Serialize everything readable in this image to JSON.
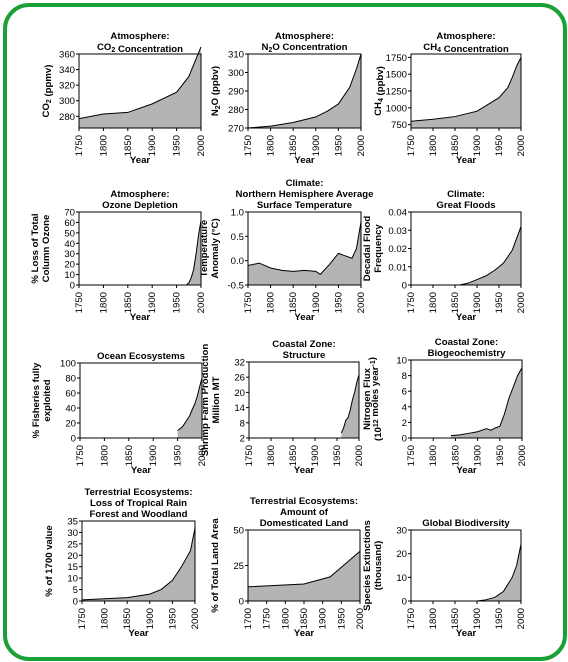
{
  "colors": {
    "frame": "#1aa035",
    "fill": "#b4b4b4",
    "line": "#000000"
  },
  "chart_data": [
    {
      "type": "area",
      "title_lines": [
        "Atmosphere:",
        "CO2 Concentration"
      ],
      "ylabel": "CO2 (ppmv)",
      "xlabel": "Year",
      "xlim": [
        1750,
        2000
      ],
      "ylim": [
        265,
        360
      ],
      "yticks": [
        280,
        300,
        320,
        340,
        360
      ],
      "xticks": [
        1750,
        1800,
        1850,
        1900,
        1950,
        2000
      ],
      "x": [
        1750,
        1800,
        1850,
        1900,
        1950,
        1975,
        1990,
        2000
      ],
      "y": [
        277,
        283,
        285,
        296,
        311,
        331,
        354,
        369
      ]
    },
    {
      "type": "area",
      "title_lines": [
        "Atmosphere:",
        "N2O Concentration"
      ],
      "ylabel": "N2O (ppbv)",
      "xlabel": "Year",
      "xlim": [
        1750,
        2000
      ],
      "ylim": [
        270,
        310
      ],
      "yticks": [
        270,
        280,
        290,
        300,
        310
      ],
      "xticks": [
        1750,
        1800,
        1850,
        1900,
        1950,
        2000
      ],
      "x": [
        1750,
        1800,
        1850,
        1900,
        1925,
        1950,
        1975,
        1990,
        2000
      ],
      "y": [
        270,
        271,
        273,
        276,
        279,
        283,
        292,
        302,
        310
      ]
    },
    {
      "type": "area",
      "title_lines": [
        "Atmosphere:",
        "CH4 Concentration"
      ],
      "ylabel": "CH4 (ppbv)",
      "xlabel": "Year",
      "xlim": [
        1750,
        2000
      ],
      "ylim": [
        700,
        1800
      ],
      "yticks": [
        750,
        1000,
        1250,
        1500,
        1750
      ],
      "xticks": [
        1750,
        1800,
        1850,
        1900,
        1950,
        2000
      ],
      "x": [
        1750,
        1800,
        1850,
        1900,
        1925,
        1950,
        1970,
        1980,
        1990,
        2000
      ],
      "y": [
        800,
        830,
        870,
        950,
        1050,
        1150,
        1300,
        1450,
        1620,
        1750
      ]
    },
    {
      "type": "area",
      "title_lines": [
        "Atmosphere:",
        "Ozone Depletion"
      ],
      "ylabel_lines": [
        "% Loss of Total",
        "Column Ozone"
      ],
      "xlabel": "Year",
      "xlim": [
        1750,
        2000
      ],
      "ylim": [
        0,
        70
      ],
      "yticks": [
        0,
        10,
        20,
        30,
        40,
        50,
        60,
        70
      ],
      "xticks": [
        1750,
        1800,
        1850,
        1900,
        1950,
        2000
      ],
      "x": [
        1750,
        1970,
        1975,
        1980,
        1985,
        1990,
        1995,
        2000
      ],
      "y": [
        0,
        0,
        2,
        7,
        15,
        30,
        48,
        62
      ]
    },
    {
      "type": "area",
      "title_lines": [
        "Climate:",
        "Northern Hemisphere Average",
        "Surface Temperature"
      ],
      "ylabel_lines": [
        "Temperature",
        "Anomaly (°C)"
      ],
      "xlabel": "Year",
      "xlim": [
        1750,
        2000
      ],
      "ylim": [
        -0.5,
        1.0
      ],
      "yticks": [
        -0.5,
        0.0,
        0.5,
        1.0
      ],
      "ytick_labels": [
        "-0.5",
        "0.0",
        "0.5",
        "1.0"
      ],
      "xticks": [
        1750,
        1800,
        1850,
        1900,
        1950,
        2000
      ],
      "x": [
        1750,
        1775,
        1800,
        1825,
        1850,
        1875,
        1900,
        1910,
        1930,
        1950,
        1965,
        1980,
        1990,
        2000
      ],
      "y": [
        -0.1,
        -0.05,
        -0.15,
        -0.2,
        -0.22,
        -0.2,
        -0.22,
        -0.28,
        -0.08,
        0.15,
        0.1,
        0.05,
        0.25,
        0.8
      ]
    },
    {
      "type": "area",
      "title_lines": [
        "Climate:",
        "Great Floods"
      ],
      "ylabel_lines": [
        "Decadal Flood",
        "Frequency"
      ],
      "xlabel": "Year",
      "xlim": [
        1750,
        2000
      ],
      "ylim": [
        0,
        0.04
      ],
      "yticks": [
        0,
        0.01,
        0.02,
        0.03,
        0.04
      ],
      "ytick_labels": [
        "0",
        "0.01",
        "0.02",
        "0.03",
        "0.04"
      ],
      "xticks": [
        1750,
        1800,
        1850,
        1900,
        1950,
        2000
      ],
      "x": [
        1860,
        1880,
        1900,
        1920,
        1940,
        1960,
        1980,
        2000
      ],
      "y": [
        0,
        0.001,
        0.003,
        0.005,
        0.008,
        0.012,
        0.019,
        0.032
      ]
    },
    {
      "type": "area",
      "title_lines": [
        "Ocean Ecosystems"
      ],
      "ylabel_lines": [
        "% Fisheries fully",
        "exploited"
      ],
      "xlabel": "Year",
      "xlim": [
        1750,
        2000
      ],
      "ylim": [
        0,
        100
      ],
      "yticks": [
        0,
        20,
        40,
        60,
        80,
        100
      ],
      "xticks": [
        1750,
        1800,
        1850,
        1900,
        1950,
        2000
      ],
      "x": [
        1950,
        1960,
        1970,
        1975,
        1980,
        1985,
        1990,
        1995,
        2000
      ],
      "y": [
        10,
        15,
        25,
        30,
        38,
        45,
        55,
        68,
        80
      ]
    },
    {
      "type": "area",
      "title_lines": [
        "Coastal Zone:",
        "Structure"
      ],
      "ylabel_lines": [
        "Shrimp Farm Production",
        "Million MT"
      ],
      "xlabel": "Year",
      "xlim": [
        1750,
        2000
      ],
      "ylim": [
        2,
        32
      ],
      "yticks": [
        2,
        8,
        14,
        20,
        26,
        32
      ],
      "xticks": [
        1750,
        1800,
        1850,
        1900,
        1950,
        2000
      ],
      "x": [
        1960,
        1965,
        1970,
        1975,
        1980,
        1985,
        1990,
        1995,
        2000
      ],
      "y": [
        4,
        6,
        9,
        10,
        13,
        17,
        20,
        24,
        27
      ]
    },
    {
      "type": "area",
      "title_lines": [
        "Coastal Zone:",
        "Biogeochemistry"
      ],
      "ylabel_lines": [
        "Nitrogen Flux",
        "(10^12 moles year^-1)"
      ],
      "xlabel": "Year",
      "xlim": [
        1750,
        2000
      ],
      "ylim": [
        0,
        10
      ],
      "yticks": [
        0,
        2,
        4,
        6,
        8,
        10
      ],
      "xticks": [
        1750,
        1800,
        1850,
        1900,
        1950,
        2000
      ],
      "x": [
        1840,
        1860,
        1880,
        1900,
        1910,
        1920,
        1930,
        1940,
        1950,
        1960,
        1970,
        1980,
        1990,
        2000
      ],
      "y": [
        0.3,
        0.4,
        0.6,
        0.8,
        1.0,
        1.2,
        1.0,
        1.3,
        1.5,
        3,
        5,
        6.5,
        8,
        9
      ]
    },
    {
      "type": "area",
      "title_lines": [
        "Terrestrial Ecosystems:",
        "Loss of Tropical Rain",
        "Forest and Woodland"
      ],
      "ylabel": "% of 1700 value",
      "xlabel": "Year",
      "xlim": [
        1750,
        2000
      ],
      "ylim": [
        0,
        35
      ],
      "yticks": [
        0,
        5,
        10,
        15,
        20,
        25,
        30,
        35
      ],
      "xticks": [
        1750,
        1800,
        1850,
        1900,
        1950,
        2000
      ],
      "x": [
        1750,
        1800,
        1850,
        1900,
        1925,
        1950,
        1970,
        1990,
        2000
      ],
      "y": [
        0.5,
        1,
        1.5,
        3,
        5,
        9,
        15,
        22,
        32
      ]
    },
    {
      "type": "area",
      "title_lines": [
        "Terrestrial Ecosystems:",
        "Amount of",
        "Domesticated Land"
      ],
      "ylabel": "% of Total Land Area",
      "xlabel": "Year",
      "xlim": [
        1700,
        2000
      ],
      "ylim": [
        0,
        50
      ],
      "yticks": [
        0,
        25,
        50
      ],
      "xticks": [
        1700,
        1750,
        1800,
        1850,
        1900,
        1950,
        2000
      ],
      "x": [
        1700,
        1850,
        1920,
        2000
      ],
      "y": [
        10,
        12,
        17,
        35
      ]
    },
    {
      "type": "area",
      "title_lines": [
        "Global Biodiversity"
      ],
      "ylabel_lines": [
        "Species Extinctions",
        "(thousand)"
      ],
      "xlabel": "Year",
      "xlim": [
        1750,
        2000
      ],
      "ylim": [
        0,
        30
      ],
      "yticks": [
        0,
        10,
        20,
        30
      ],
      "xticks": [
        1750,
        1800,
        1850,
        1900,
        1950,
        2000
      ],
      "x": [
        1900,
        1920,
        1940,
        1960,
        1980,
        1990,
        2000
      ],
      "y": [
        0,
        0.5,
        1.5,
        4,
        10,
        15,
        24
      ]
    }
  ]
}
